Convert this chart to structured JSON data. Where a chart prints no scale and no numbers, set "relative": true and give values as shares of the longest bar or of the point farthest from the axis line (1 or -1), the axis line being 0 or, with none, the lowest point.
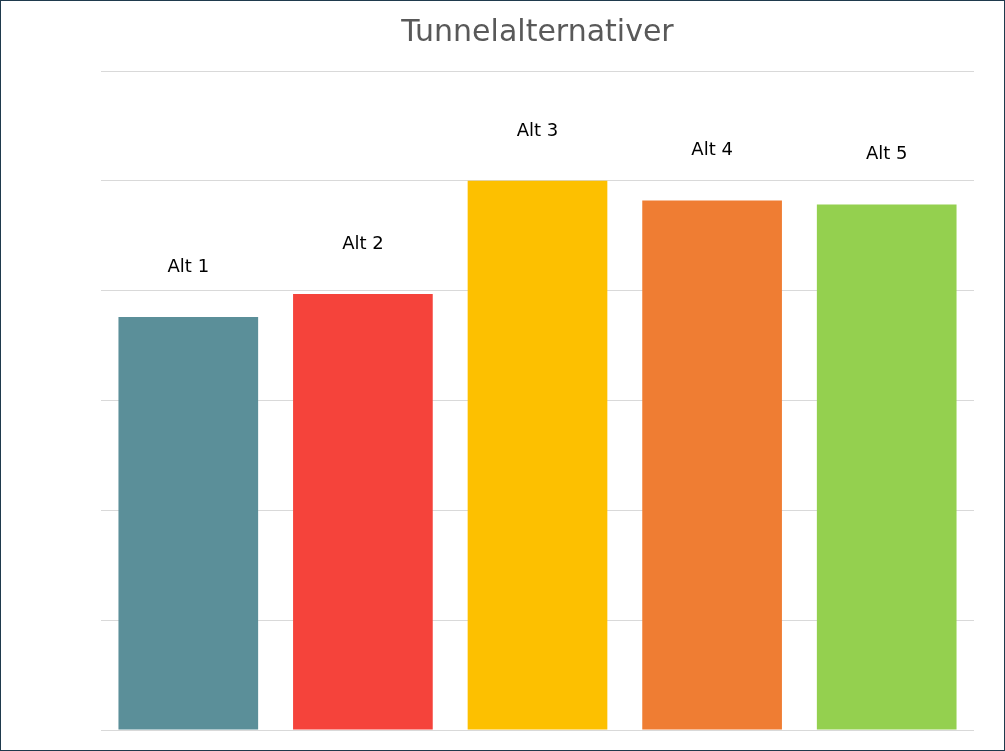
{
  "chart_data": {
    "type": "bar",
    "title": "Tunnelalternativer",
    "relative": true,
    "grid": "y",
    "categories": [
      "Alt 1",
      "Alt 2",
      "Alt 3",
      "Alt 4",
      "Alt 5"
    ],
    "values": [
      0.752,
      0.794,
      1,
      0.964,
      0.957
    ],
    "colors": [
      "#5b8f99",
      "#f5433b",
      "#fdc000",
      "#ef7d33",
      "#94d04f"
    ]
  }
}
